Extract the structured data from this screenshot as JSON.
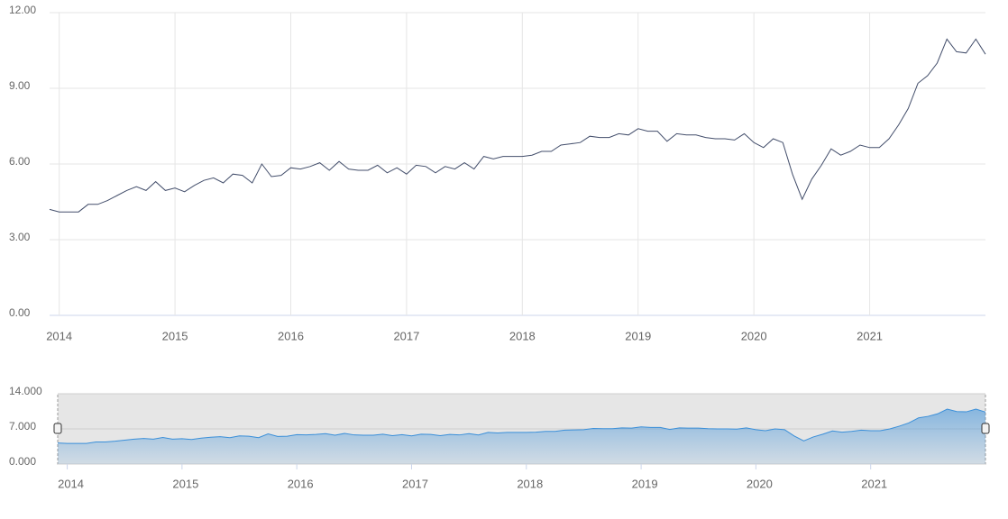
{
  "chart_data": {
    "type": "line",
    "color": "#434e6b",
    "x": [
      2013.917,
      2014.0,
      2014.083,
      2014.167,
      2014.25,
      2014.333,
      2014.417,
      2014.5,
      2014.583,
      2014.667,
      2014.75,
      2014.833,
      2014.917,
      2015.0,
      2015.083,
      2015.167,
      2015.25,
      2015.333,
      2015.417,
      2015.5,
      2015.583,
      2015.667,
      2015.75,
      2015.833,
      2015.917,
      2016.0,
      2016.083,
      2016.167,
      2016.25,
      2016.333,
      2016.417,
      2016.5,
      2016.583,
      2016.667,
      2016.75,
      2016.833,
      2016.917,
      2017.0,
      2017.083,
      2017.167,
      2017.25,
      2017.333,
      2017.417,
      2017.5,
      2017.583,
      2017.667,
      2017.75,
      2017.833,
      2017.917,
      2018.0,
      2018.083,
      2018.167,
      2018.25,
      2018.333,
      2018.417,
      2018.5,
      2018.583,
      2018.667,
      2018.75,
      2018.833,
      2018.917,
      2019.0,
      2019.083,
      2019.167,
      2019.25,
      2019.333,
      2019.417,
      2019.5,
      2019.583,
      2019.667,
      2019.75,
      2019.833,
      2019.917,
      2020.0,
      2020.083,
      2020.167,
      2020.25,
      2020.333,
      2020.417,
      2020.5,
      2020.583,
      2020.667,
      2020.75,
      2020.833,
      2020.917,
      2021.0,
      2021.083,
      2021.167,
      2021.25,
      2021.333,
      2021.417,
      2021.5,
      2021.583,
      2021.667,
      2021.75,
      2021.833,
      2021.917,
      2022.0
    ],
    "values": [
      4.2,
      4.1,
      4.1,
      4.1,
      4.4,
      4.4,
      4.55,
      4.75,
      4.95,
      5.1,
      4.95,
      5.3,
      4.95,
      5.05,
      4.9,
      5.15,
      5.35,
      5.45,
      5.25,
      5.6,
      5.55,
      5.25,
      6.0,
      5.5,
      5.55,
      5.85,
      5.8,
      5.9,
      6.05,
      5.75,
      6.1,
      5.8,
      5.75,
      5.75,
      5.95,
      5.65,
      5.85,
      5.6,
      5.95,
      5.9,
      5.65,
      5.9,
      5.8,
      6.05,
      5.8,
      6.3,
      6.2,
      6.3,
      6.3,
      6.3,
      6.35,
      6.5,
      6.5,
      6.75,
      6.8,
      6.85,
      7.1,
      7.05,
      7.05,
      7.2,
      7.15,
      7.4,
      7.3,
      7.3,
      6.9,
      7.2,
      7.15,
      7.15,
      7.05,
      7.0,
      7.0,
      6.95,
      7.2,
      6.85,
      6.65,
      7.0,
      6.85,
      5.6,
      4.6,
      5.4,
      5.95,
      6.6,
      6.35,
      6.5,
      6.75,
      6.65,
      6.65,
      7.0,
      7.55,
      8.2,
      9.2,
      9.5,
      10.0,
      10.95,
      10.45,
      10.4,
      10.95,
      10.35
    ],
    "xlim": [
      2013.917,
      2022.0
    ],
    "xticks": [
      2014,
      2015,
      2016,
      2017,
      2018,
      2019,
      2020,
      2021
    ],
    "ylim": [
      0,
      12
    ],
    "yticks": [
      {
        "value": 0,
        "label": "0.00"
      },
      {
        "value": 3,
        "label": "3.00"
      },
      {
        "value": 6,
        "label": "6.00"
      },
      {
        "value": 9,
        "label": "9.00"
      },
      {
        "value": 12,
        "label": "12.00"
      }
    ],
    "grid": true,
    "navigator": {
      "color": "#3a8fd9",
      "ylim": [
        0,
        14
      ],
      "yticks": [
        {
          "value": 0,
          "label": "0.000"
        },
        {
          "value": 7,
          "label": "7.000"
        },
        {
          "value": 14,
          "label": "14.000"
        }
      ]
    }
  }
}
